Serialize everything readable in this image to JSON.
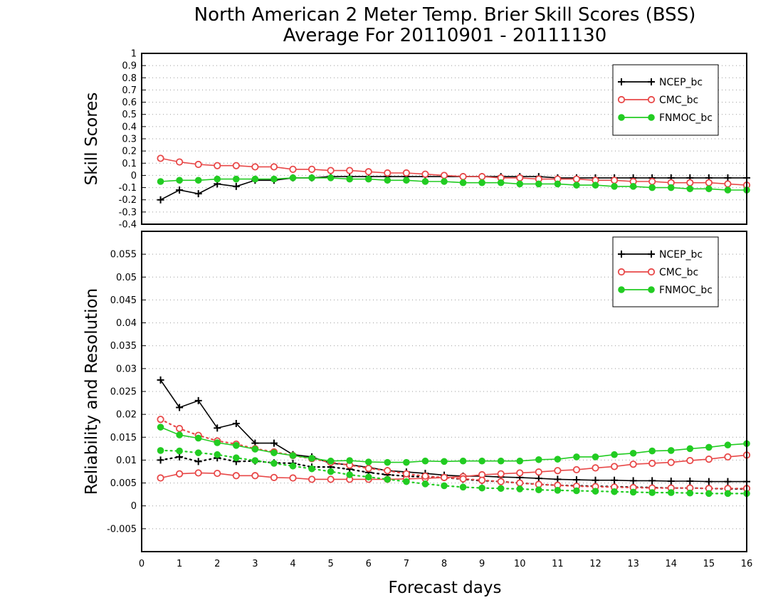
{
  "title_line1": "North American 2 Meter Temp. Brier Skill Scores (BSS)",
  "title_line2": "Average For 20110901 - 20111130",
  "xlabel": "Forecast days",
  "x_ticks": [
    "0",
    "1",
    "2",
    "3",
    "4",
    "5",
    "6",
    "7",
    "8",
    "9",
    "10",
    "11",
    "12",
    "13",
    "14",
    "15",
    "16"
  ],
  "colors": {
    "ncep": "#000000",
    "cmc": "#e84848",
    "fnmoc": "#22cc22",
    "grid": "#999999"
  },
  "chart_data": [
    {
      "type": "line",
      "ylabel": "Skill Scores",
      "xlim": [
        0,
        16
      ],
      "ylim": [
        -0.4,
        1
      ],
      "y_ticks": [
        "1",
        "0.9",
        "0.8",
        "0.7",
        "0.6",
        "0.5",
        "0.4",
        "0.3",
        "0.2",
        "0.1",
        "0",
        "-0.1",
        "-0.2",
        "-0.3",
        "-0.4"
      ],
      "x": [
        0.5,
        1,
        1.5,
        2,
        2.5,
        3,
        3.5,
        4,
        4.5,
        5,
        5.5,
        6,
        6.5,
        7,
        7.5,
        8,
        8.5,
        9,
        9.5,
        10,
        10.5,
        11,
        11.5,
        12,
        12.5,
        13,
        13.5,
        14,
        14.5,
        15,
        15.5,
        16
      ],
      "legend": {
        "position": "top-right",
        "entries": [
          "NCEP_bc",
          "CMC_bc",
          "FNMOC_bc"
        ]
      },
      "series": [
        {
          "name": "NCEP_bc",
          "marker": "plus",
          "style": "solid",
          "values": [
            -0.2,
            -0.12,
            -0.15,
            -0.07,
            -0.09,
            -0.04,
            -0.04,
            -0.02,
            -0.02,
            -0.01,
            -0.01,
            -0.01,
            -0.01,
            -0.01,
            -0.01,
            -0.01,
            -0.01,
            -0.01,
            -0.01,
            -0.01,
            -0.01,
            -0.02,
            -0.02,
            -0.02,
            -0.02,
            -0.02,
            -0.02,
            -0.02,
            -0.02,
            -0.02,
            -0.02,
            -0.02
          ]
        },
        {
          "name": "CMC_bc",
          "marker": "open-circle",
          "style": "solid",
          "values": [
            0.14,
            0.11,
            0.09,
            0.08,
            0.08,
            0.07,
            0.07,
            0.05,
            0.05,
            0.04,
            0.04,
            0.03,
            0.02,
            0.02,
            0.01,
            0,
            -0.01,
            -0.01,
            -0.02,
            -0.02,
            -0.03,
            -0.03,
            -0.03,
            -0.04,
            -0.04,
            -0.05,
            -0.05,
            -0.06,
            -0.06,
            -0.06,
            -0.07,
            -0.08
          ]
        },
        {
          "name": "FNMOC_bc",
          "marker": "filled-circle",
          "style": "solid",
          "values": [
            -0.05,
            -0.04,
            -0.04,
            -0.03,
            -0.03,
            -0.03,
            -0.03,
            -0.02,
            -0.02,
            -0.02,
            -0.03,
            -0.03,
            -0.04,
            -0.04,
            -0.05,
            -0.05,
            -0.06,
            -0.06,
            -0.06,
            -0.07,
            -0.07,
            -0.07,
            -0.08,
            -0.08,
            -0.09,
            -0.09,
            -0.1,
            -0.1,
            -0.11,
            -0.11,
            -0.12,
            -0.12
          ]
        }
      ]
    },
    {
      "type": "line",
      "ylabel": "Reliability and Resolution",
      "xlim": [
        0,
        16
      ],
      "ylim": [
        -0.01,
        0.06
      ],
      "y_ticks": [
        "0.055",
        "0.05",
        "0.045",
        "0.04",
        "0.035",
        "0.03",
        "0.025",
        "0.02",
        "0.015",
        "0.01",
        "0.005",
        "0",
        "-0.005"
      ],
      "x": [
        0.5,
        1,
        1.5,
        2,
        2.5,
        3,
        3.5,
        4,
        4.5,
        5,
        5.5,
        6,
        6.5,
        7,
        7.5,
        8,
        8.5,
        9,
        9.5,
        10,
        10.5,
        11,
        11.5,
        12,
        12.5,
        13,
        13.5,
        14,
        14.5,
        15,
        15.5,
        16
      ],
      "legend": {
        "position": "top-right",
        "entries": [
          "NCEP_bc",
          "CMC_bc",
          "FNMOC_bc"
        ]
      },
      "series": [
        {
          "name": "NCEP_bc",
          "marker": "plus",
          "style": "solid",
          "values": [
            0.0275,
            0.0215,
            0.023,
            0.017,
            0.018,
            0.0137,
            0.0137,
            0.0112,
            0.0107,
            0.0093,
            0.009,
            0.0084,
            0.0077,
            0.0074,
            0.0071,
            0.0067,
            0.0065,
            0.0065,
            0.0063,
            0.0062,
            0.006,
            0.0058,
            0.0057,
            0.0056,
            0.0056,
            0.0055,
            0.0055,
            0.0054,
            0.0054,
            0.0053,
            0.0053,
            0.0053
          ]
        },
        {
          "name": "NCEP_bc",
          "marker": "plus",
          "style": "dotted",
          "values": [
            0.01,
            0.0107,
            0.0097,
            0.0105,
            0.0097,
            0.0098,
            0.0094,
            0.0093,
            0.0085,
            0.0085,
            0.008,
            0.0073,
            0.0068,
            0.0065,
            0.0063,
            0.0062,
            0.0058,
            0.0055,
            0.0053,
            0.005,
            0.0047,
            0.0045,
            0.0044,
            0.0043,
            0.0042,
            0.0041,
            0.004,
            0.0039,
            0.0039,
            0.0038,
            0.0037,
            0.0037
          ]
        },
        {
          "name": "CMC_bc",
          "marker": "open-circle",
          "style": "solid",
          "values": [
            0.0061,
            0.007,
            0.0072,
            0.0071,
            0.0066,
            0.0066,
            0.0062,
            0.0061,
            0.0058,
            0.0058,
            0.0058,
            0.0058,
            0.0058,
            0.0059,
            0.006,
            0.0062,
            0.0064,
            0.0068,
            0.007,
            0.0072,
            0.0074,
            0.0077,
            0.0079,
            0.0083,
            0.0086,
            0.0091,
            0.0093,
            0.0095,
            0.0099,
            0.0102,
            0.0107,
            0.0111
          ]
        },
        {
          "name": "CMC_bc",
          "marker": "open-circle",
          "style": "dotted",
          "values": [
            0.0189,
            0.0169,
            0.0154,
            0.0142,
            0.0135,
            0.0125,
            0.0118,
            0.011,
            0.0103,
            0.0095,
            0.0089,
            0.0082,
            0.0077,
            0.007,
            0.0065,
            0.0062,
            0.0059,
            0.0056,
            0.0053,
            0.005,
            0.0047,
            0.0045,
            0.0043,
            0.0042,
            0.0041,
            0.004,
            0.0039,
            0.0039,
            0.0039,
            0.0038,
            0.0038,
            0.0038
          ]
        },
        {
          "name": "FNMOC_bc",
          "marker": "filled-circle",
          "style": "solid",
          "values": [
            0.0172,
            0.0155,
            0.0148,
            0.0138,
            0.0132,
            0.0124,
            0.0116,
            0.011,
            0.0104,
            0.0098,
            0.0099,
            0.0096,
            0.0095,
            0.0095,
            0.0098,
            0.0097,
            0.0098,
            0.0098,
            0.0098,
            0.0098,
            0.0101,
            0.0102,
            0.0107,
            0.0107,
            0.0112,
            0.0115,
            0.012,
            0.0121,
            0.0125,
            0.0128,
            0.0133,
            0.0136
          ]
        },
        {
          "name": "FNMOC_bc",
          "marker": "filled-circle",
          "style": "dotted",
          "values": [
            0.0121,
            0.012,
            0.0116,
            0.0112,
            0.0105,
            0.0099,
            0.0093,
            0.0087,
            0.0081,
            0.0075,
            0.0068,
            0.0063,
            0.0058,
            0.0053,
            0.0048,
            0.0044,
            0.0041,
            0.0039,
            0.0038,
            0.0037,
            0.0035,
            0.0034,
            0.0033,
            0.0032,
            0.0031,
            0.003,
            0.0029,
            0.0029,
            0.0028,
            0.0027,
            0.0027,
            0.0027
          ]
        }
      ]
    }
  ]
}
